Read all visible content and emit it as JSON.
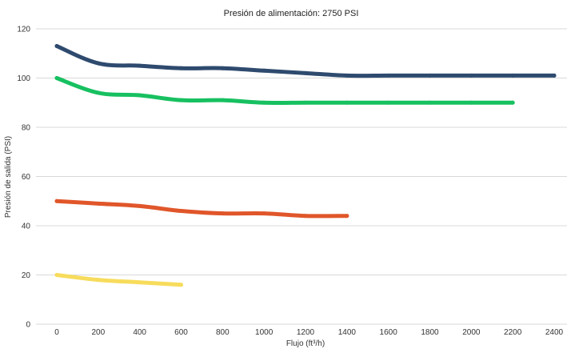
{
  "chart_data": {
    "type": "line",
    "title": "Presión de alimentación: 2750 PSI",
    "xlabel": "Flujo (ft³/h)",
    "ylabel": "Presión de salida (PSI)",
    "xlim": [
      0,
      2400
    ],
    "ylim": [
      0,
      120
    ],
    "x_ticks": [
      "0",
      "200",
      "400",
      "600",
      "800",
      "1000",
      "1200",
      "1400",
      "1600",
      "1800",
      "2000",
      "2200",
      "2400"
    ],
    "y_ticks": [
      "0",
      "20",
      "40",
      "60",
      "80",
      "100",
      "120"
    ],
    "grid": "horizontal",
    "legend": "none",
    "series": [
      {
        "color": "#2e4a6e",
        "x": [
          0,
          200,
          400,
          600,
          800,
          1000,
          1200,
          1400,
          1600,
          1800,
          2000,
          2200,
          2400
        ],
        "values": [
          113,
          106,
          105,
          104,
          104,
          103,
          102,
          101,
          101,
          101,
          101,
          101,
          101
        ]
      },
      {
        "color": "#17c060",
        "x": [
          0,
          200,
          400,
          600,
          800,
          1000,
          1200,
          1400,
          1600,
          1800,
          2000,
          2200
        ],
        "values": [
          100,
          94,
          93,
          91,
          91,
          90,
          90,
          90,
          90,
          90,
          90,
          90
        ]
      },
      {
        "color": "#e0562a",
        "x": [
          0,
          200,
          400,
          600,
          800,
          1000,
          1200,
          1400
        ],
        "values": [
          50,
          49,
          48,
          46,
          45,
          45,
          44,
          44
        ]
      },
      {
        "color": "#f7dc5c",
        "x": [
          0,
          200,
          400,
          600
        ],
        "values": [
          20,
          18,
          17,
          16
        ]
      }
    ]
  }
}
